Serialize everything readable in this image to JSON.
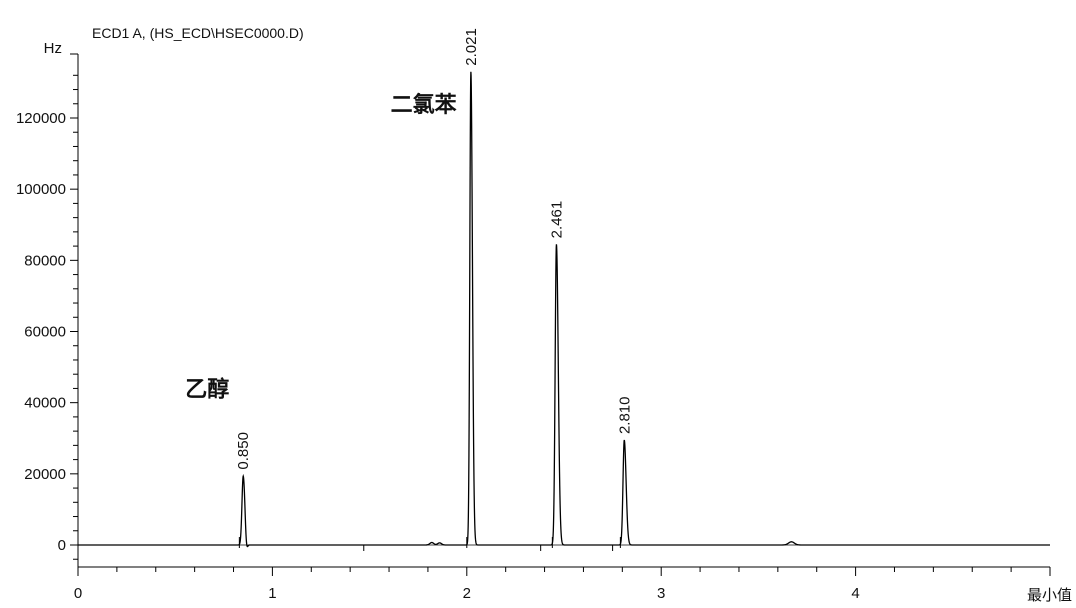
{
  "chart_data": {
    "type": "line",
    "title": "ECD1 A, (HS_ECD\\HSEC0000.D)",
    "xlabel": "最小值",
    "ylabel": "Hz",
    "xlim": [
      0,
      5
    ],
    "ylim": [
      -6000,
      134000
    ],
    "x_ticks": [
      0,
      1,
      2,
      3,
      4
    ],
    "y_ticks": [
      0,
      20000,
      40000,
      60000,
      80000,
      100000,
      120000
    ],
    "peaks": [
      {
        "rt": 0.85,
        "label": "0.850",
        "height": 19500
      },
      {
        "rt": 2.021,
        "label": "2.021",
        "height": 133000
      },
      {
        "rt": 2.461,
        "label": "2.461",
        "height": 84500
      },
      {
        "rt": 2.81,
        "label": "2.810",
        "height": 29500
      }
    ],
    "annotations": [
      {
        "text": "乙醇",
        "x": 0.85,
        "y": 44000
      },
      {
        "text": "二氯苯",
        "x": 2.02,
        "y": 124000
      }
    ],
    "line_color": "#000000"
  }
}
